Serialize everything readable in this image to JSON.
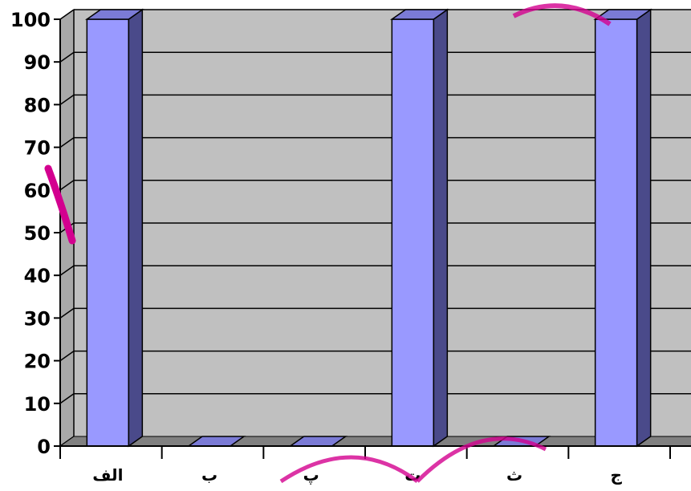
{
  "chart_data": {
    "type": "bar",
    "style": "3d-column",
    "categories": [
      "الف",
      "ب",
      "پ",
      "ت",
      "ث",
      "ج"
    ],
    "values": [
      100,
      0,
      0,
      100,
      0,
      100
    ],
    "title": "",
    "xlabel": "",
    "ylabel": "",
    "ylim": [
      0,
      100
    ],
    "yticks": [
      0,
      10,
      20,
      30,
      40,
      50,
      60,
      70,
      80,
      90,
      100
    ],
    "grid": true,
    "legend": "none",
    "colors": {
      "bar_front": "#9999ff",
      "bar_side": "#4a4a8a",
      "bar_top": "#7b7bd6",
      "wall": "#c0c0c0",
      "floor": "#808080",
      "gridline": "#000000",
      "watermark": "#d3008f"
    }
  }
}
